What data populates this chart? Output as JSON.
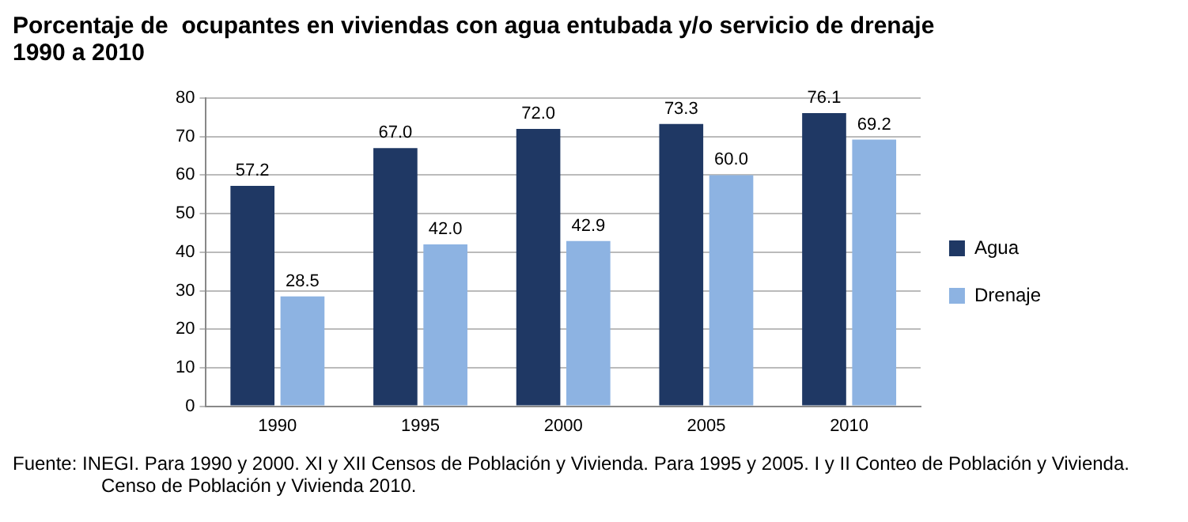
{
  "chart_data": {
    "type": "bar",
    "title": "Porcentaje de  ocupantes en viviendas con agua entubada y/o servicio de drenaje",
    "subtitle": "1990 a 2010",
    "categories": [
      "1990",
      "1995",
      "2000",
      "2005",
      "2010"
    ],
    "series": [
      {
        "name": "Agua",
        "color": "#1f3864",
        "values": [
          57.2,
          67.0,
          72.0,
          73.3,
          76.1
        ],
        "value_labels": [
          "57.2",
          "67.0",
          "72.0",
          "73.3",
          "76.1"
        ]
      },
      {
        "name": "Drenaje",
        "color": "#8db3e2",
        "values": [
          28.5,
          42.0,
          42.9,
          60.0,
          69.2
        ],
        "value_labels": [
          "28.5",
          "42.0",
          "42.9",
          "60.0",
          "69.2"
        ]
      }
    ],
    "ylim": [
      0,
      80
    ],
    "yticks": [
      0,
      10,
      20,
      30,
      40,
      50,
      60,
      70,
      80
    ],
    "grid": "y",
    "legend": "right",
    "annotations": [
      "Fuente: INEGI.  Para 1990 y 2000. XI y XII Censos de Población y Vivienda. Para 1995 y 2005. I y II Conteo de Población y Vivienda. Censo de Población y Vivienda 2010."
    ]
  }
}
